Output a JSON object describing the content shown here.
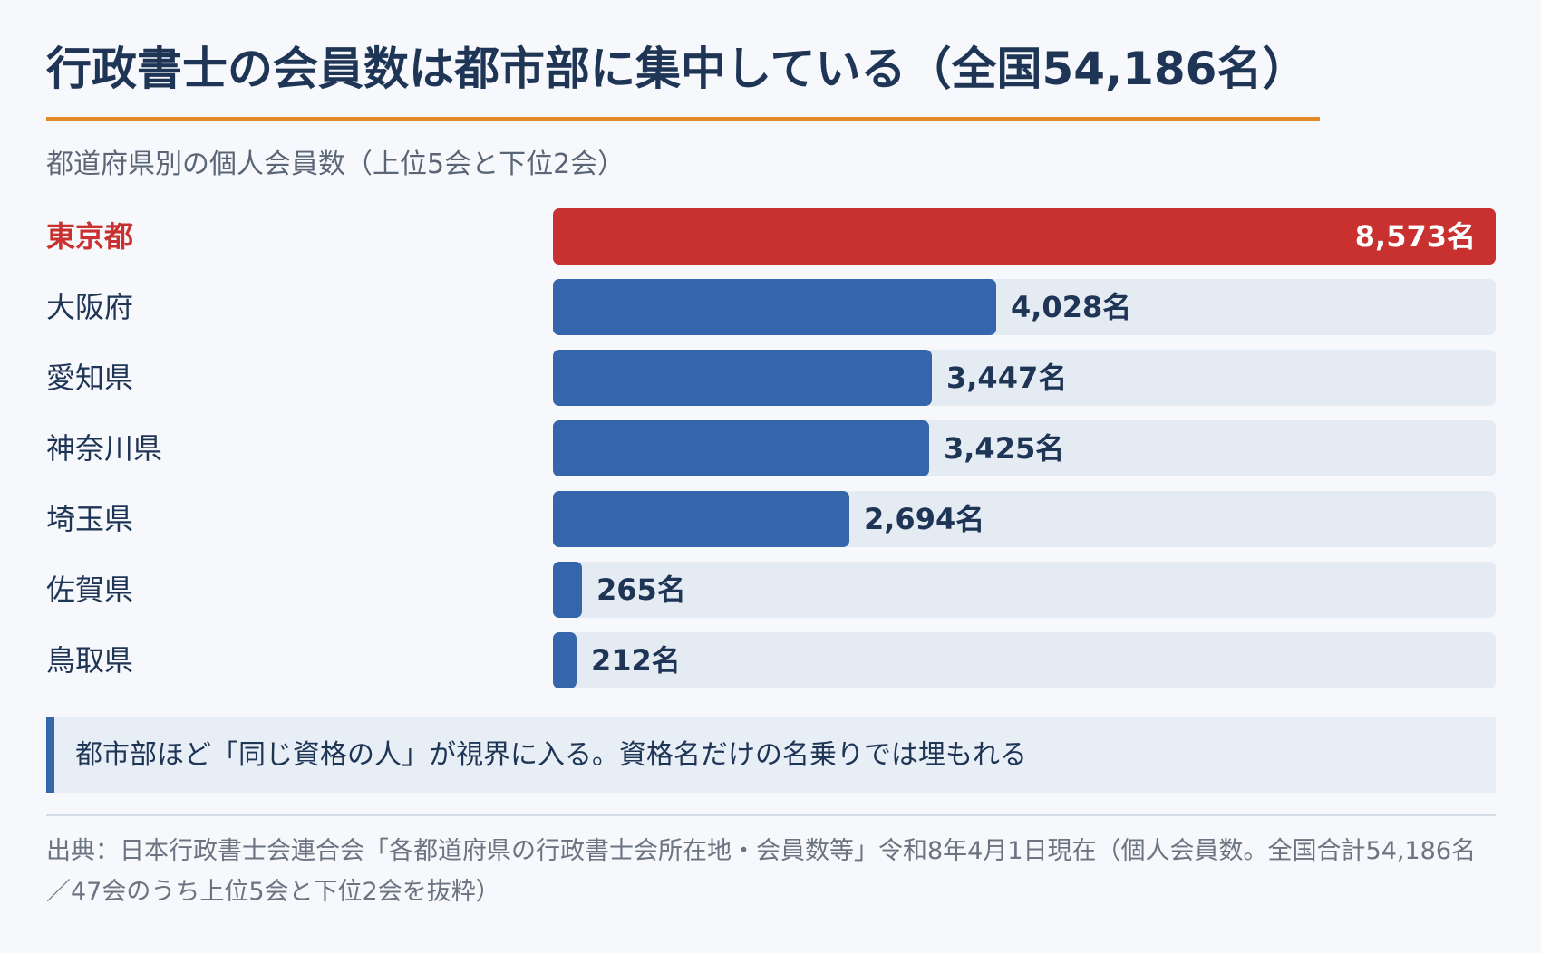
{
  "header": {
    "title": "行政書士の会員数は都市部に集中している（全国54,186名）",
    "subtitle": "都道府県別の個人会員数（上位5会と下位2会）"
  },
  "colors": {
    "accent_rule": "#e08a24",
    "highlight_bar": "#c93131",
    "normal_bar": "#3566ab",
    "track": "#e5ebf2",
    "text_dark": "#1f3556"
  },
  "chart_data": {
    "type": "bar",
    "orientation": "horizontal",
    "title": "行政書士の会員数は都市部に集中している（全国54,186名）",
    "subtitle": "都道府県別の個人会員数（上位5会と下位2会）",
    "categories": [
      "東京都",
      "大阪府",
      "愛知県",
      "神奈川県",
      "埼玉県",
      "佐賀県",
      "鳥取県"
    ],
    "values": [
      8573,
      4028,
      3447,
      3425,
      2694,
      265,
      212
    ],
    "value_labels": [
      "8,573名",
      "4,028名",
      "3,447名",
      "3,425名",
      "2,694名",
      "265名",
      "212名"
    ],
    "highlight_index": 0,
    "xlim": [
      0,
      8573
    ],
    "grid": false,
    "legend": "none"
  },
  "note": {
    "text": "都市部ほど「同じ資格の人」が視界に入る。資格名だけの名乗りでは埋もれる"
  },
  "source": {
    "text": "出典：日本行政書士会連合会「各都道府県の行政書士会所在地・会員数等」令和8年4月1日現在（個人会員数。全国合計54,186名／47会のうち上位5会と下位2会を抜粋）"
  }
}
